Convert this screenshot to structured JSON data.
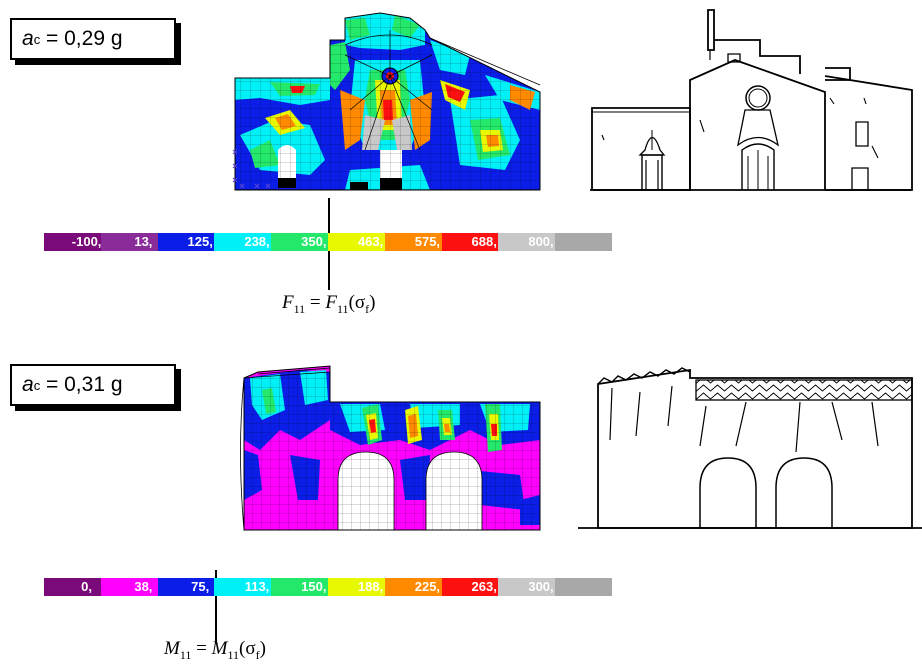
{
  "panel_top": {
    "acceleration": {
      "symbol": "a",
      "subscript": "c",
      "text": " = 0,29 g"
    },
    "colorbar": {
      "ticks": [
        "-100,",
        "13,",
        "125,",
        "238,",
        "350,",
        "463,",
        "575,",
        "688,",
        "800,"
      ],
      "colors": [
        "#7a0a7a",
        "#8a2b9a",
        "#0b1ee8",
        "#00f0f8",
        "#24e86a",
        "#e8f800",
        "#ff8a00",
        "#ff1010",
        "#c8c8c8",
        "#a8a8a8"
      ]
    },
    "formula": {
      "lhs": "F",
      "lhs_sub": "11",
      "eq": " = ",
      "rhs": "F",
      "rhs_sub": "11",
      "arg": "(σ",
      "arg_sub": "f",
      "close": ")"
    }
  },
  "panel_bottom": {
    "acceleration": {
      "symbol": "a",
      "subscript": "c",
      "text": " = 0,31 g"
    },
    "colorbar": {
      "ticks": [
        "0,",
        "38,",
        "75,",
        "113,",
        "150,",
        "188,",
        "225,",
        "263,",
        "300,"
      ],
      "colors": [
        "#7a0a7a",
        "#ff00ff",
        "#0b1ee8",
        "#00f0f8",
        "#24e86a",
        "#e8f800",
        "#ff8a00",
        "#ff1010",
        "#c8c8c8",
        "#a8a8a8"
      ]
    },
    "formula": {
      "lhs": "M",
      "lhs_sub": "11",
      "eq": " = ",
      "rhs": "M",
      "rhs_sub": "11",
      "arg": "(σ",
      "arg_sub": "f",
      "close": ")"
    }
  }
}
